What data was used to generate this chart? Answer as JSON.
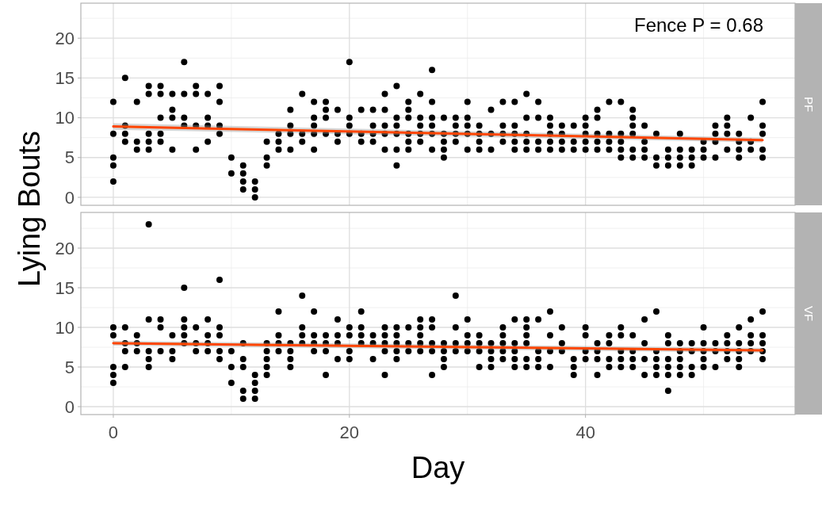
{
  "chart_data": [
    {
      "type": "scatter",
      "ylabel": "Lying Bouts",
      "annotations": [
        "PF",
        "Fence P = 0.68"
      ],
      "xlim": [
        -2.75,
        57.75
      ],
      "xticks": [
        0,
        20,
        40
      ],
      "ylim": [
        -1,
        24.4
      ],
      "yticks": [
        0,
        5,
        10,
        15,
        20
      ],
      "grid": true,
      "tick_labels": "y",
      "marker": "circle",
      "series": [
        {
          "color": "#000000",
          "x": [
            0,
            0,
            0,
            0,
            0,
            1,
            1,
            1,
            1,
            2,
            2,
            2,
            3,
            3,
            3,
            3,
            3,
            4,
            4,
            4,
            4,
            4,
            5,
            5,
            5,
            5,
            6,
            6,
            6,
            6,
            7,
            7,
            7,
            7,
            8,
            8,
            8,
            8,
            9,
            9,
            9,
            9,
            10,
            10,
            11,
            11,
            11,
            11,
            12,
            12,
            12,
            13,
            13,
            13,
            14,
            14,
            14,
            15,
            15,
            15,
            15,
            16,
            16,
            16,
            17,
            17,
            17,
            17,
            17,
            18,
            18,
            18,
            18,
            19,
            19,
            19,
            20,
            20,
            20,
            20,
            21,
            21,
            21,
            22,
            22,
            22,
            22,
            23,
            23,
            23,
            23,
            23,
            24,
            24,
            24,
            24,
            24,
            24,
            25,
            25,
            25,
            25,
            25,
            25,
            26,
            26,
            26,
            26,
            26,
            27,
            27,
            27,
            27,
            27,
            27,
            28,
            28,
            28,
            28,
            28,
            29,
            29,
            29,
            29,
            30,
            30,
            30,
            30,
            30,
            31,
            31,
            31,
            31,
            32,
            32,
            32,
            33,
            33,
            33,
            33,
            34,
            34,
            34,
            34,
            34,
            35,
            35,
            35,
            35,
            35,
            36,
            36,
            36,
            36,
            37,
            37,
            37,
            37,
            37,
            38,
            38,
            38,
            38,
            39,
            39,
            39,
            40,
            40,
            40,
            40,
            40,
            41,
            41,
            41,
            41,
            41,
            42,
            42,
            42,
            42,
            43,
            43,
            43,
            43,
            43,
            44,
            44,
            44,
            44,
            44,
            44,
            45,
            45,
            45,
            45,
            46,
            46,
            46,
            47,
            47,
            47,
            48,
            48,
            48,
            48,
            49,
            49,
            49,
            50,
            50,
            50,
            51,
            51,
            51,
            51,
            52,
            52,
            52,
            52,
            53,
            53,
            53,
            53,
            54,
            54,
            54,
            55,
            55,
            55,
            55,
            55
          ],
          "values": [
            12,
            8,
            5,
            4,
            2,
            15,
            9,
            8,
            7,
            12,
            7,
            6,
            14,
            13,
            8,
            7,
            6,
            14,
            13,
            10,
            8,
            7,
            13,
            11,
            10,
            6,
            17,
            13,
            10,
            9,
            14,
            13,
            9,
            6,
            13,
            10,
            9,
            7,
            14,
            12,
            9,
            8,
            5,
            3,
            4,
            3,
            2,
            1,
            2,
            1,
            0,
            7,
            5,
            4,
            8,
            7,
            6,
            11,
            9,
            8,
            6,
            13,
            8,
            7,
            12,
            10,
            9,
            8,
            6,
            12,
            11,
            10,
            8,
            11,
            8,
            7,
            17,
            10,
            9,
            8,
            11,
            8,
            7,
            11,
            9,
            8,
            7,
            13,
            11,
            9,
            8,
            6,
            14,
            10,
            9,
            8,
            6,
            4,
            12,
            11,
            10,
            8,
            7,
            6,
            13,
            10,
            9,
            8,
            7,
            16,
            12,
            10,
            9,
            8,
            6,
            10,
            8,
            7,
            6,
            5,
            10,
            9,
            8,
            7,
            12,
            10,
            9,
            8,
            6,
            9,
            8,
            7,
            6,
            11,
            8,
            6,
            12,
            9,
            8,
            7,
            12,
            9,
            8,
            7,
            6,
            13,
            10,
            8,
            7,
            6,
            12,
            10,
            7,
            6,
            10,
            9,
            8,
            7,
            6,
            9,
            8,
            7,
            6,
            9,
            7,
            6,
            10,
            9,
            8,
            7,
            6,
            11,
            10,
            8,
            7,
            6,
            12,
            8,
            7,
            6,
            12,
            8,
            7,
            6,
            5,
            11,
            10,
            9,
            8,
            6,
            5,
            9,
            7,
            6,
            5,
            8,
            5,
            4,
            6,
            5,
            4,
            8,
            6,
            5,
            4,
            6,
            5,
            4,
            7,
            6,
            5,
            9,
            8,
            7,
            5,
            10,
            9,
            8,
            6,
            8,
            7,
            6,
            5,
            10,
            7,
            6,
            12,
            9,
            8,
            6,
            5
          ]
        },
        {
          "type": "line",
          "marker": "none",
          "color": "#ff4500",
          "x": [
            0,
            55
          ],
          "values": [
            8.9,
            7.2
          ],
          "lower": [
            8.5,
            6.9
          ],
          "upper": [
            9.3,
            7.5
          ]
        }
      ]
    },
    {
      "type": "scatter",
      "annotations": [
        "VF"
      ],
      "xlabel": "Day",
      "xlim": [
        -2.75,
        57.75
      ],
      "xticks": [
        0,
        20,
        40
      ],
      "ylim": [
        -1,
        24.5
      ],
      "yticks": [
        0,
        5,
        10,
        15,
        20
      ],
      "grid": true,
      "marker": "circle",
      "series": [
        {
          "color": "#000000",
          "x": [
            0,
            0,
            0,
            0,
            0,
            1,
            1,
            1,
            1,
            2,
            2,
            2,
            3,
            3,
            3,
            3,
            3,
            4,
            4,
            4,
            5,
            5,
            5,
            6,
            6,
            6,
            6,
            6,
            7,
            7,
            7,
            8,
            8,
            8,
            8,
            9,
            9,
            9,
            9,
            9,
            10,
            10,
            10,
            11,
            11,
            11,
            11,
            11,
            12,
            12,
            12,
            12,
            13,
            13,
            13,
            13,
            13,
            14,
            14,
            14,
            14,
            15,
            15,
            15,
            15,
            16,
            16,
            16,
            16,
            17,
            17,
            17,
            17,
            18,
            18,
            18,
            18,
            19,
            19,
            19,
            19,
            20,
            20,
            20,
            20,
            21,
            21,
            21,
            21,
            22,
            22,
            22,
            23,
            23,
            23,
            23,
            23,
            24,
            24,
            24,
            24,
            24,
            25,
            25,
            25,
            26,
            26,
            26,
            26,
            26,
            27,
            27,
            27,
            27,
            27,
            28,
            28,
            28,
            28,
            29,
            29,
            29,
            29,
            30,
            30,
            30,
            30,
            31,
            31,
            31,
            31,
            32,
            32,
            32,
            32,
            33,
            33,
            33,
            33,
            33,
            34,
            34,
            34,
            34,
            34,
            35,
            35,
            35,
            35,
            35,
            35,
            36,
            36,
            36,
            36,
            37,
            37,
            37,
            37,
            38,
            38,
            38,
            39,
            39,
            39,
            40,
            40,
            40,
            40,
            41,
            41,
            41,
            41,
            42,
            42,
            42,
            42,
            43,
            43,
            43,
            43,
            43,
            44,
            44,
            44,
            44,
            45,
            45,
            45,
            45,
            46,
            46,
            46,
            46,
            46,
            47,
            47,
            47,
            47,
            47,
            47,
            48,
            48,
            48,
            48,
            48,
            49,
            49,
            49,
            49,
            50,
            50,
            50,
            50,
            50,
            51,
            51,
            51,
            52,
            52,
            52,
            52,
            53,
            53,
            53,
            53,
            53,
            54,
            54,
            54,
            54,
            55,
            55,
            55,
            55,
            55
          ],
          "values": [
            10,
            9,
            5,
            4,
            3,
            10,
            8,
            7,
            5,
            9,
            8,
            7,
            23,
            11,
            7,
            6,
            5,
            11,
            10,
            7,
            9,
            7,
            6,
            15,
            11,
            10,
            9,
            8,
            10,
            8,
            7,
            11,
            9,
            8,
            7,
            16,
            10,
            9,
            7,
            6,
            7,
            5,
            3,
            8,
            6,
            5,
            2,
            1,
            4,
            3,
            2,
            1,
            8,
            7,
            6,
            5,
            4,
            12,
            9,
            8,
            7,
            8,
            7,
            6,
            5,
            14,
            10,
            9,
            8,
            12,
            9,
            8,
            7,
            9,
            8,
            7,
            4,
            11,
            9,
            8,
            6,
            10,
            9,
            7,
            6,
            12,
            10,
            9,
            8,
            9,
            8,
            6,
            10,
            9,
            8,
            7,
            4,
            10,
            9,
            8,
            7,
            6,
            10,
            8,
            7,
            11,
            10,
            9,
            8,
            7,
            11,
            10,
            8,
            7,
            4,
            8,
            7,
            6,
            5,
            14,
            10,
            8,
            7,
            11,
            9,
            8,
            7,
            9,
            8,
            7,
            5,
            8,
            7,
            6,
            5,
            10,
            9,
            8,
            7,
            6,
            11,
            8,
            7,
            6,
            5,
            11,
            10,
            9,
            8,
            6,
            5,
            11,
            7,
            6,
            5,
            12,
            9,
            7,
            5,
            10,
            8,
            7,
            6,
            5,
            4,
            10,
            9,
            7,
            6,
            8,
            7,
            6,
            4,
            9,
            8,
            6,
            5,
            10,
            9,
            7,
            6,
            5,
            9,
            7,
            6,
            5,
            11,
            8,
            6,
            4,
            12,
            7,
            6,
            5,
            4,
            9,
            8,
            6,
            5,
            4,
            2,
            8,
            7,
            6,
            5,
            4,
            8,
            7,
            5,
            4,
            10,
            8,
            7,
            6,
            5,
            8,
            7,
            5,
            9,
            8,
            7,
            6,
            10,
            8,
            7,
            6,
            5,
            11,
            9,
            8,
            7,
            12,
            9,
            8,
            7,
            6
          ]
        },
        {
          "type": "line",
          "marker": "none",
          "color": "#ff4500",
          "x": [
            0,
            55
          ],
          "values": [
            8.0,
            7.1
          ],
          "lower": [
            7.7,
            6.8
          ],
          "upper": [
            8.3,
            7.4
          ]
        }
      ]
    }
  ]
}
